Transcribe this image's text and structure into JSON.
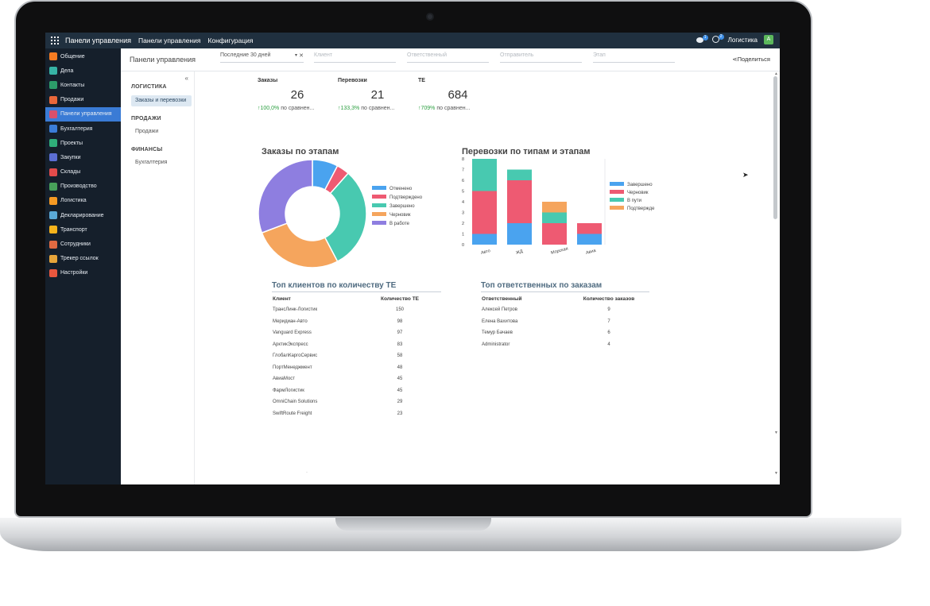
{
  "topbar": {
    "brand": "Панели управления",
    "menu": [
      "Панели управления",
      "Конфигурация"
    ],
    "chat_badge": "1",
    "activity_badge": "2",
    "company": "Логистика",
    "avatar_letter": "A"
  },
  "sidebar": {
    "items": [
      {
        "label": "Общение",
        "icon": "chat-icon",
        "color": "#f57c22"
      },
      {
        "label": "Дела",
        "icon": "pen-icon",
        "color": "#37b3a5"
      },
      {
        "label": "Контакты",
        "icon": "contacts-icon",
        "color": "#2c9c6a"
      },
      {
        "label": "Продажи",
        "icon": "sales-chart-icon",
        "color": "#e8673a"
      },
      {
        "label": "Панели управления",
        "icon": "dashboard-icon",
        "color": "#d9506b"
      },
      {
        "label": "Бухгалтерия",
        "icon": "accounting-icon",
        "color": "#3b7dd8"
      },
      {
        "label": "Проекты",
        "icon": "projects-icon",
        "color": "#2fae7a"
      },
      {
        "label": "Закупки",
        "icon": "purchase-icon",
        "color": "#5b6ed4"
      },
      {
        "label": "Склады",
        "icon": "warehouse-icon",
        "color": "#e24b4b"
      },
      {
        "label": "Производство",
        "icon": "factory-icon",
        "color": "#47a05a"
      },
      {
        "label": "Логистика",
        "icon": "logistics-icon",
        "color": "#f59a23"
      },
      {
        "label": "Декларирование",
        "icon": "declaration-icon",
        "color": "#5aa9d6"
      },
      {
        "label": "Транспорт",
        "icon": "transport-icon",
        "color": "#f5b31b"
      },
      {
        "label": "Сотрудники",
        "icon": "employees-icon",
        "color": "#e06a42"
      },
      {
        "label": "Трекер ссылок",
        "icon": "link-tracker-icon",
        "color": "#e8a53a"
      },
      {
        "label": "Настройки",
        "icon": "settings-icon",
        "color": "#e9573e"
      }
    ],
    "active_index": 4
  },
  "subheader": {
    "breadcrumb": "Панели управления",
    "period": "Последние 30 дней",
    "clear": "✕",
    "filters": [
      "Клиент",
      "Ответственный",
      "Отправитель",
      "Этап"
    ],
    "share": "Поделиться"
  },
  "leftnav": {
    "sections": [
      {
        "title": "ЛОГИСТИКА",
        "links": [
          "Заказы и перевозки"
        ]
      },
      {
        "title": "ПРОДАЖИ",
        "links": [
          "Продажи"
        ]
      },
      {
        "title": "ФИНАНСЫ",
        "links": [
          "Бухгалтерия"
        ]
      }
    ],
    "collapse": "«"
  },
  "kpis": [
    {
      "title": "Заказы",
      "value": "26",
      "delta": "100,0%",
      "suffix": "по сравнен..."
    },
    {
      "title": "Перевозки",
      "value": "21",
      "delta": "133,3%",
      "suffix": "по сравнен..."
    },
    {
      "title": "TE",
      "value": "684",
      "delta": "709%",
      "suffix": "по сравнен..."
    }
  ],
  "charts": {
    "donut_title": "Заказы по этапам",
    "bar_title": "Перевозки по типам и этапам"
  },
  "chart_data": [
    {
      "type": "pie",
      "title": "Заказы по этапам",
      "donut": true,
      "slices": [
        {
          "label": "Отменено",
          "value": 2,
          "color": "#4aa3ef"
        },
        {
          "label": "Подтверждено",
          "value": 1,
          "color": "#ee5a72"
        },
        {
          "label": "Завершено",
          "value": 8,
          "color": "#48c9b0"
        },
        {
          "label": "Черновик",
          "value": 7,
          "color": "#f5a55d"
        },
        {
          "label": "В работе",
          "value": 8,
          "color": "#8e7ee0"
        }
      ],
      "legend": "right"
    },
    {
      "type": "bar",
      "stacked": true,
      "title": "Перевозки по типам и этапам",
      "categories": [
        "Авто",
        "ЖД",
        "Морская",
        "Авиа"
      ],
      "series": [
        {
          "name": "Завершено",
          "values": [
            1,
            2,
            0,
            1
          ],
          "color": "#4aa3ef"
        },
        {
          "name": "Черновик",
          "values": [
            4,
            4,
            2,
            1
          ],
          "color": "#ee5a72"
        },
        {
          "name": "В пути",
          "values": [
            3,
            1,
            1,
            0
          ],
          "color": "#48c9b0"
        },
        {
          "name": "Подтвержде",
          "values": [
            0,
            0,
            1,
            0
          ],
          "color": "#f5a55d"
        }
      ],
      "ylim": [
        0,
        8
      ],
      "yticks": [
        0,
        1,
        2,
        3,
        4,
        5,
        6,
        7,
        8
      ],
      "legend": "right"
    }
  ],
  "clients_table": {
    "title": "Топ клиентов по количеству TE",
    "headers": [
      "Клиент",
      "Количество TE"
    ],
    "rows": [
      [
        "ТрансЛинк-Логистик",
        "150"
      ],
      [
        "Меридиан-Авто",
        "98"
      ],
      [
        "Vanguard Express",
        "97"
      ],
      [
        "АрктикЭкспресс",
        "83"
      ],
      [
        "ГлобалКаргоСервис",
        "58"
      ],
      [
        "ПортМенеджмент",
        "48"
      ],
      [
        "АвиаМост",
        "45"
      ],
      [
        "ФармЛогистик",
        "45"
      ],
      [
        "OmniChain Solutions",
        "29"
      ],
      [
        "SwiftRoute Freight",
        "23"
      ]
    ]
  },
  "managers_table": {
    "title": "Топ ответственных по заказам",
    "headers": [
      "Ответственный",
      "Количество заказов"
    ],
    "rows": [
      [
        "Алексей Петров",
        "9"
      ],
      [
        "Елена Вахитова",
        "7"
      ],
      [
        "Темур Бачаев",
        "6"
      ],
      [
        "Administrator",
        "4"
      ]
    ]
  }
}
